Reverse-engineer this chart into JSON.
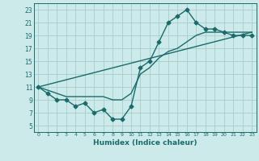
{
  "xlabel": "Humidex (Indice chaleur)",
  "ylabel": "",
  "bg_color": "#cceaea",
  "grid_color": "#aacccc",
  "line_color": "#1a6b6b",
  "xlim": [
    -0.5,
    23.5
  ],
  "ylim": [
    4,
    24
  ],
  "xticks": [
    0,
    1,
    2,
    3,
    4,
    5,
    6,
    7,
    8,
    9,
    10,
    11,
    12,
    13,
    14,
    15,
    16,
    17,
    18,
    19,
    20,
    21,
    22,
    23
  ],
  "yticks": [
    5,
    7,
    9,
    11,
    13,
    15,
    17,
    19,
    21,
    23
  ],
  "series": [
    {
      "x": [
        0,
        1,
        2,
        3,
        4,
        5,
        6,
        7,
        8,
        9,
        10,
        11,
        12,
        13,
        14,
        15,
        16,
        17,
        18,
        19,
        20,
        21,
        22,
        23
      ],
      "y": [
        11,
        10,
        9,
        9,
        8,
        8.5,
        7,
        7.5,
        6,
        6,
        8,
        14,
        15,
        18,
        21,
        22,
        23,
        21,
        20,
        20,
        19.5,
        19,
        19,
        19
      ],
      "marker": "D",
      "markersize": 2.5,
      "linewidth": 1.0
    },
    {
      "x": [
        0,
        1,
        2,
        3,
        4,
        5,
        6,
        7,
        8,
        9,
        10,
        11,
        12,
        13,
        14,
        15,
        16,
        17,
        18,
        19,
        20,
        21,
        22,
        23
      ],
      "y": [
        11,
        10.5,
        10,
        9.5,
        9.5,
        9.5,
        9.5,
        9.5,
        9,
        9,
        10,
        13,
        14,
        15.5,
        16.5,
        17,
        18,
        19,
        19.5,
        19.5,
        19.5,
        19.5,
        19.5,
        19.5
      ],
      "marker": null,
      "markersize": 0,
      "linewidth": 1.0
    },
    {
      "x": [
        0,
        23
      ],
      "y": [
        11,
        19.5
      ],
      "marker": null,
      "markersize": 0,
      "linewidth": 1.0
    }
  ]
}
